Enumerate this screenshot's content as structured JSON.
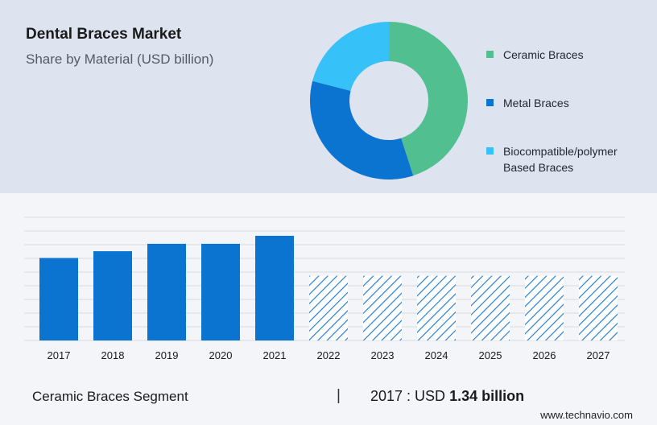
{
  "header": {
    "title": "Dental Braces Market",
    "subtitle": "Share by Material (USD billion)"
  },
  "chart_data": [
    {
      "type": "pie",
      "style": "donut",
      "title": "Share by Material (USD billion)",
      "categories": [
        "Ceramic Braces",
        "Metal Braces",
        "Biocompatible/polymer Based Braces"
      ],
      "values": [
        45,
        34,
        21
      ],
      "colors": [
        "#52bf90",
        "#0b74d1",
        "#36c2f8"
      ],
      "legend_position": "right"
    },
    {
      "type": "bar",
      "categories": [
        "2017",
        "2018",
        "2019",
        "2020",
        "2021",
        "2022",
        "2023",
        "2024",
        "2025",
        "2026",
        "2027"
      ],
      "values": [
        1.34,
        1.45,
        1.57,
        1.57,
        1.7,
        1.05,
        1.05,
        1.05,
        1.05,
        1.05,
        1.05
      ],
      "forecast_from": "2022",
      "forecast_style": "hatched",
      "bar_color": "#0b74d1",
      "hatch_color": "#2a7fcf",
      "ylim": [
        0,
        2.0
      ],
      "grid": true
    }
  ],
  "footer": {
    "segment_label": "Ceramic Braces Segment",
    "divider": "|",
    "value_prefix": "2017 : USD ",
    "value_bold": "1.34 billion"
  },
  "source": "www.technavio.com"
}
